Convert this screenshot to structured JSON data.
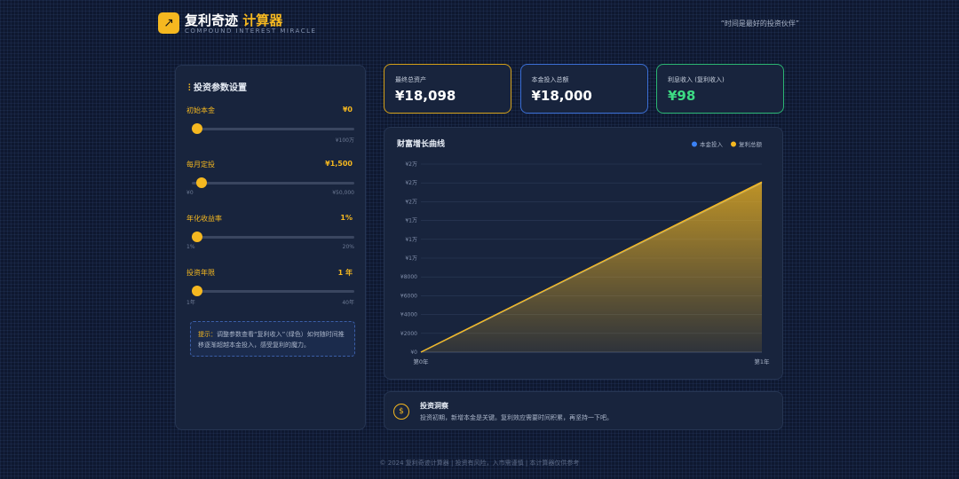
{
  "header": {
    "title": "复利奇迹",
    "title_highlight": "计算器",
    "subtitle": "COMPOUND INTEREST MIRACLE",
    "motto": "“时间是最好的投资伙伴”"
  },
  "settings": {
    "title": "投资参数设置",
    "sliders": [
      {
        "label": "初始本金",
        "value": "¥0",
        "max": "¥100万"
      },
      {
        "label": "每月定投",
        "value": "¥1,500",
        "min": "¥0",
        "max": "¥50,000"
      },
      {
        "label": "年化收益率",
        "value": "1%",
        "min": "1%",
        "max": "20%"
      },
      {
        "label": "投资年限",
        "value": "1 年",
        "min": "1年",
        "max": "40年"
      }
    ],
    "tip_label": "提示：",
    "tip": "调整参数查看“复利收入”（绿色）如何随时间推移逐渐超越本金投入，感受复利的魔力。"
  },
  "stats": [
    {
      "label": "最终总资产",
      "value": "¥18,098"
    },
    {
      "label": "本金投入总额",
      "value": "¥18,000"
    },
    {
      "label": "利息收入 (复利收入)",
      "value": "¥98"
    }
  ],
  "chart_data": {
    "type": "area",
    "title": "财富增长曲线",
    "categories": [
      "第0年",
      "第1年"
    ],
    "series": [
      {
        "name": "本金投入",
        "color": "#3b82f6",
        "values": [
          0,
          18000
        ]
      },
      {
        "name": "复利总额",
        "color": "#f5b820",
        "values": [
          0,
          18098
        ]
      }
    ],
    "ylim": [
      0,
      20000
    ],
    "yticks": [
      0,
      {
        "value": 2000,
        "label": "¥2000"
      },
      {
        "value": 4000,
        "label": "¥4000"
      },
      {
        "value": 6000,
        "label": "¥6000"
      },
      {
        "value": 8000,
        "label": "¥8000"
      },
      {
        "value": 10000,
        "label": "¥1万"
      },
      {
        "value": 12000,
        "label": "¥1万"
      },
      {
        "value": 14000,
        "label": "¥1万"
      },
      {
        "value": 16000,
        "label": "¥2万"
      },
      {
        "value": 18000,
        "label": "¥2万"
      },
      {
        "value": 20000,
        "label": "¥2万"
      }
    ],
    "zero_label": "¥0",
    "grid": true,
    "legend": "top-right"
  },
  "insight": {
    "title": "投资洞察",
    "text": "投资初期，新增本金是关键。复利效应需要时间积累，再坚持一下吧。"
  },
  "footer": "© 2024 复利奇迹计算器 | 投资有风险，入市需谨慎 | 本计算器仅供参考"
}
